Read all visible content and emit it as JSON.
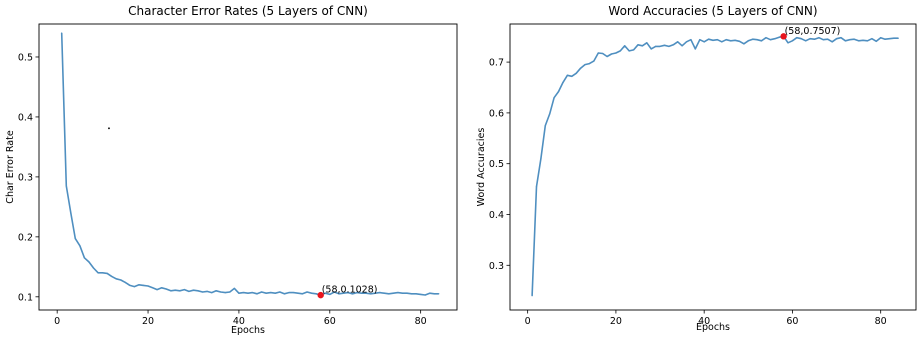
{
  "chart_data": [
    {
      "type": "line",
      "title": "Character Error Rates (5 Layers of CNN)",
      "xlabel": "Epochs",
      "ylabel": "Char Error Rate",
      "xlim": [
        -4,
        88
      ],
      "ylim": [
        0.078,
        0.555
      ],
      "xticks": [
        0,
        20,
        40,
        60,
        80
      ],
      "yticks": [
        0.1,
        0.2,
        0.3,
        0.4,
        0.5
      ],
      "ytick_labels": [
        "0.1",
        "0.2",
        "0.3",
        "0.4",
        "0.5"
      ],
      "grid": false,
      "series": [
        {
          "color": "#4f8fc0",
          "x": [
            1,
            2,
            3,
            4,
            5,
            6,
            7,
            8,
            9,
            10,
            11,
            12,
            13,
            14,
            15,
            16,
            17,
            18,
            19,
            20,
            21,
            22,
            23,
            24,
            25,
            26,
            27,
            28,
            29,
            30,
            31,
            32,
            33,
            34,
            35,
            36,
            37,
            38,
            39,
            40,
            41,
            42,
            43,
            44,
            45,
            46,
            47,
            48,
            49,
            50,
            51,
            52,
            53,
            54,
            55,
            56,
            57,
            58,
            59,
            60,
            61,
            62,
            63,
            64,
            65,
            66,
            67,
            68,
            69,
            70,
            71,
            72,
            73,
            74,
            75,
            76,
            77,
            78,
            79,
            80,
            81,
            82,
            83,
            84
          ],
          "y": [
            0.54,
            0.285,
            0.24,
            0.197,
            0.185,
            0.165,
            0.158,
            0.148,
            0.14,
            0.14,
            0.139,
            0.134,
            0.13,
            0.128,
            0.124,
            0.119,
            0.117,
            0.12,
            0.119,
            0.118,
            0.115,
            0.112,
            0.115,
            0.113,
            0.11,
            0.111,
            0.11,
            0.112,
            0.109,
            0.111,
            0.11,
            0.108,
            0.109,
            0.107,
            0.11,
            0.108,
            0.107,
            0.108,
            0.114,
            0.106,
            0.107,
            0.106,
            0.107,
            0.105,
            0.108,
            0.106,
            0.107,
            0.106,
            0.108,
            0.105,
            0.107,
            0.107,
            0.106,
            0.105,
            0.108,
            0.106,
            0.105,
            0.1028,
            0.106,
            0.104,
            0.108,
            0.105,
            0.106,
            0.107,
            0.105,
            0.107,
            0.106,
            0.106,
            0.105,
            0.106,
            0.107,
            0.106,
            0.105,
            0.106,
            0.107,
            0.106,
            0.106,
            0.105,
            0.105,
            0.104,
            0.103,
            0.106,
            0.105,
            0.105
          ]
        }
      ],
      "highlight": {
        "x": 58,
        "y": 0.1028,
        "label": "(58,0.1028)",
        "color": "#e8141c"
      },
      "stray_mark": {
        "x": 11.4,
        "y": 0.381
      }
    },
    {
      "type": "line",
      "title": "Word Accuracies (5 Layers of CNN)",
      "xlabel": "Epochs",
      "ylabel": "Word Accuracies",
      "xlim": [
        -4,
        88
      ],
      "ylim": [
        0.212,
        0.775
      ],
      "xticks": [
        0,
        20,
        40,
        60,
        80
      ],
      "yticks": [
        0.3,
        0.4,
        0.5,
        0.6,
        0.7
      ],
      "ytick_labels": [
        "0.3",
        "0.4",
        "0.5",
        "0.6",
        "0.7"
      ],
      "grid": false,
      "series": [
        {
          "color": "#4f8fc0",
          "x": [
            1,
            2,
            3,
            4,
            5,
            6,
            7,
            8,
            9,
            10,
            11,
            12,
            13,
            14,
            15,
            16,
            17,
            18,
            19,
            20,
            21,
            22,
            23,
            24,
            25,
            26,
            27,
            28,
            29,
            30,
            31,
            32,
            33,
            34,
            35,
            36,
            37,
            38,
            39,
            40,
            41,
            42,
            43,
            44,
            45,
            46,
            47,
            48,
            49,
            50,
            51,
            52,
            53,
            54,
            55,
            56,
            57,
            58,
            59,
            60,
            61,
            62,
            63,
            64,
            65,
            66,
            67,
            68,
            69,
            70,
            71,
            72,
            73,
            74,
            75,
            76,
            77,
            78,
            79,
            80,
            81,
            82,
            83,
            84
          ],
          "y": [
            0.24,
            0.455,
            0.51,
            0.575,
            0.598,
            0.63,
            0.642,
            0.66,
            0.674,
            0.672,
            0.678,
            0.688,
            0.695,
            0.697,
            0.702,
            0.718,
            0.717,
            0.711,
            0.716,
            0.718,
            0.722,
            0.732,
            0.722,
            0.724,
            0.734,
            0.732,
            0.738,
            0.726,
            0.731,
            0.731,
            0.733,
            0.731,
            0.734,
            0.74,
            0.732,
            0.74,
            0.744,
            0.726,
            0.744,
            0.74,
            0.745,
            0.743,
            0.744,
            0.74,
            0.744,
            0.742,
            0.743,
            0.741,
            0.736,
            0.742,
            0.745,
            0.744,
            0.742,
            0.748,
            0.744,
            0.746,
            0.749,
            0.7507,
            0.738,
            0.742,
            0.748,
            0.746,
            0.742,
            0.746,
            0.745,
            0.748,
            0.744,
            0.745,
            0.74,
            0.746,
            0.748,
            0.742,
            0.744,
            0.745,
            0.742,
            0.743,
            0.742,
            0.746,
            0.741,
            0.748,
            0.745,
            0.746,
            0.747,
            0.747
          ]
        }
      ],
      "highlight": {
        "x": 58,
        "y": 0.7507,
        "label": "(58,0.7507)",
        "color": "#e8141c"
      }
    }
  ]
}
